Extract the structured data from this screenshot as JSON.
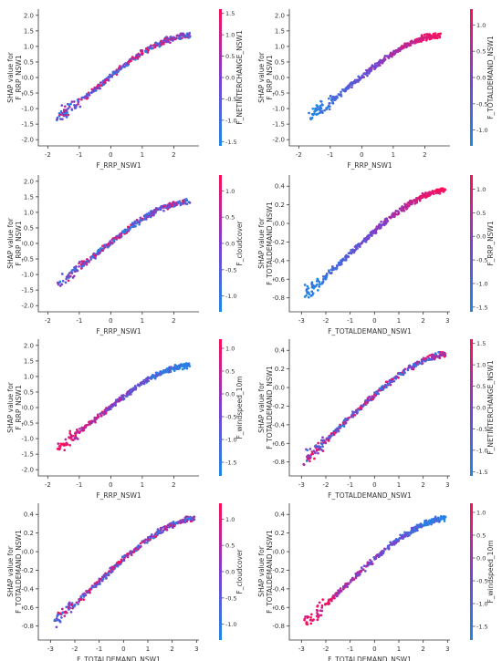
{
  "colorbar_stops": [
    "#1e88e5",
    "#7c3fcf",
    "#ff0d57"
  ],
  "chart_data": [
    {
      "type": "scatter",
      "xlabel": "F_RRP_NSW1",
      "ylabel": [
        "SHAP value for",
        "F_RRP_NSW1"
      ],
      "color_label": "F_NETINTERCHANGE_NSW1",
      "xlim": [
        -2.3,
        2.8
      ],
      "ylim": [
        -2.2,
        2.2
      ],
      "xticks": [
        "-2",
        "-1",
        "0",
        "1",
        "2"
      ],
      "xtick_values": [
        -2,
        -1,
        0,
        1,
        2
      ],
      "yticks": [
        "-2.0",
        "-1.5",
        "-1.0",
        "-0.5",
        "0.0",
        "0.5",
        "1.0",
        "1.5",
        "2.0"
      ],
      "ytick_values": [
        -2,
        -1.5,
        -1,
        -0.5,
        0,
        0.5,
        1,
        1.5,
        2
      ],
      "cticks": [
        "-1.5",
        "-1.0",
        "-0.5",
        "0.0",
        "0.5",
        "1.0",
        "1.5"
      ],
      "ctick_values": [
        -1.5,
        -1,
        -0.5,
        0,
        0.5,
        1,
        1.5
      ],
      "clim": [
        -1.6,
        1.6
      ],
      "trend": {
        "x0": -1.7,
        "x1": 2.5,
        "a": 0.03,
        "b": 0.82,
        "c": -0.03,
        "d": -0.035
      },
      "spread": 0.13,
      "color_mode": "random",
      "seed": 11
    },
    {
      "type": "scatter",
      "xlabel": "F_RRP_NSW1",
      "ylabel": [
        "SHAP value for",
        "F_RRP_NSW1"
      ],
      "color_label": "F_TOTALDEMAND_NSW1",
      "xlim": [
        -2.3,
        2.8
      ],
      "ylim": [
        -2.2,
        2.2
      ],
      "xticks": [
        "-2",
        "-1",
        "0",
        "1",
        "2"
      ],
      "xtick_values": [
        -2,
        -1,
        0,
        1,
        2
      ],
      "yticks": [
        "-2.0",
        "-1.5",
        "-1.0",
        "-0.5",
        "0.0",
        "0.5",
        "1.0",
        "1.5",
        "2.0"
      ],
      "ytick_values": [
        -2,
        -1.5,
        -1,
        -0.5,
        0,
        0.5,
        1,
        1.5,
        2
      ],
      "cticks": [
        "-1.0",
        "-0.5",
        "0.0",
        "0.5",
        "1.0"
      ],
      "ctick_values": [
        -1,
        -0.5,
        0,
        0.5,
        1
      ],
      "clim": [
        -1.3,
        1.3
      ],
      "trend": {
        "x0": -1.7,
        "x1": 2.5,
        "a": 0.03,
        "b": 0.82,
        "c": -0.03,
        "d": -0.035
      },
      "spread": 0.13,
      "color_mode": "x",
      "seed": 23
    },
    {
      "type": "scatter",
      "xlabel": "F_RRP_NSW1",
      "ylabel": [
        "SHAP value for",
        "F_RRP_NSW1"
      ],
      "color_label": "F_cloudcover",
      "xlim": [
        -2.3,
        2.8
      ],
      "ylim": [
        -2.2,
        2.2
      ],
      "xticks": [
        "-2",
        "-1",
        "0",
        "1",
        "2"
      ],
      "xtick_values": [
        -2,
        -1,
        0,
        1,
        2
      ],
      "yticks": [
        "-2.0",
        "-1.5",
        "-1.0",
        "-0.5",
        "0.0",
        "0.5",
        "1.0",
        "1.5",
        "2.0"
      ],
      "ytick_values": [
        -2,
        -1.5,
        -1,
        -0.5,
        0,
        0.5,
        1,
        1.5,
        2
      ],
      "cticks": [
        "-1.0",
        "-0.5",
        "0.0",
        "0.5",
        "1.0"
      ],
      "ctick_values": [
        -1,
        -0.5,
        0,
        0.5,
        1
      ],
      "clim": [
        -1.3,
        1.3
      ],
      "trend": {
        "x0": -1.7,
        "x1": 2.5,
        "a": 0.03,
        "b": 0.82,
        "c": -0.03,
        "d": -0.035
      },
      "spread": 0.13,
      "color_mode": "random",
      "seed": 37
    },
    {
      "type": "scatter",
      "xlabel": "F_TOTALDEMAND_NSW1",
      "ylabel": [
        "SHAP value for",
        "F_TOTALDEMAND_NSW1"
      ],
      "color_label": "F_RRP_NSW1",
      "xlim": [
        -3.5,
        3.1
      ],
      "ylim": [
        -0.95,
        0.52
      ],
      "xticks": [
        "-3",
        "-2",
        "-1",
        "0",
        "1",
        "2",
        "3"
      ],
      "xtick_values": [
        -3,
        -2,
        -1,
        0,
        1,
        2,
        3
      ],
      "yticks": [
        "-0.8",
        "-0.6",
        "-0.4",
        "-0.2",
        "0.0",
        "0.2",
        "0.4"
      ],
      "ytick_values": [
        -0.8,
        -0.6,
        -0.4,
        -0.2,
        0,
        0.2,
        0.4
      ],
      "cticks": [
        "-1.5",
        "-1.0",
        "-0.5",
        "0.0",
        "0.5",
        "1.0"
      ],
      "ctick_values": [
        -1.5,
        -1,
        -0.5,
        0,
        0.5,
        1
      ],
      "clim": [
        -1.6,
        1.3
      ],
      "trend": {
        "x0": -2.9,
        "x1": 2.9,
        "a": -0.08,
        "b": 0.23,
        "c": -0.015,
        "d": -0.004
      },
      "spread": 0.045,
      "color_mode": "x",
      "seed": 41
    },
    {
      "type": "scatter",
      "xlabel": "F_RRP_NSW1",
      "ylabel": [
        "SHAP value for",
        "F_RRP_NSW1"
      ],
      "color_label": "F_windspeed_10m",
      "xlim": [
        -2.3,
        2.8
      ],
      "ylim": [
        -2.2,
        2.2
      ],
      "xticks": [
        "-2",
        "-1",
        "0",
        "1",
        "2"
      ],
      "xtick_values": [
        -2,
        -1,
        0,
        1,
        2
      ],
      "yticks": [
        "-2.0",
        "-1.5",
        "-1.0",
        "-0.5",
        "0.0",
        "0.5",
        "1.0",
        "1.5",
        "2.0"
      ],
      "ytick_values": [
        -2,
        -1.5,
        -1,
        -0.5,
        0,
        0.5,
        1,
        1.5,
        2
      ],
      "cticks": [
        "-1.5",
        "-1.0",
        "-0.5",
        "0.0",
        "0.5",
        "1.0"
      ],
      "ctick_values": [
        -1.5,
        -1,
        -0.5,
        0,
        0.5,
        1
      ],
      "clim": [
        -1.8,
        1.2
      ],
      "trend": {
        "x0": -1.7,
        "x1": 2.5,
        "a": 0.03,
        "b": 0.82,
        "c": -0.03,
        "d": -0.035
      },
      "spread": 0.13,
      "color_mode": "neg",
      "seed": 53
    },
    {
      "type": "scatter",
      "xlabel": "F_TOTALDEMAND_NSW1",
      "ylabel": [
        "SHAP value for",
        "F_TOTALDEMAND_NSW1"
      ],
      "color_label": "F_NETINTERCHANGE_NSW1",
      "xlim": [
        -3.5,
        3.1
      ],
      "ylim": [
        -0.95,
        0.52
      ],
      "xticks": [
        "-3",
        "-2",
        "-1",
        "0",
        "1",
        "2",
        "3"
      ],
      "xtick_values": [
        -3,
        -2,
        -1,
        0,
        1,
        2,
        3
      ],
      "yticks": [
        "-0.8",
        "-0.6",
        "-0.4",
        "-0.2",
        "0.0",
        "0.2",
        "0.4"
      ],
      "ytick_values": [
        -0.8,
        -0.6,
        -0.4,
        -0.2,
        0,
        0.2,
        0.4
      ],
      "cticks": [
        "-1.5",
        "-1.0",
        "-0.5",
        "0.0",
        "0.5",
        "1.0",
        "1.5"
      ],
      "ctick_values": [
        -1.5,
        -1,
        -0.5,
        0,
        0.5,
        1,
        1.5
      ],
      "clim": [
        -1.6,
        1.6
      ],
      "trend": {
        "x0": -2.9,
        "x1": 2.9,
        "a": -0.08,
        "b": 0.23,
        "c": -0.015,
        "d": -0.004
      },
      "spread": 0.045,
      "color_mode": "random",
      "seed": 67
    },
    {
      "type": "scatter",
      "xlabel": "F_TOTALDEMAND_NSW1",
      "ylabel": [
        "SHAP value for",
        "F_TOTALDEMAND_NSW1"
      ],
      "color_label": "F_cloudcover",
      "xlim": [
        -3.5,
        3.1
      ],
      "ylim": [
        -0.95,
        0.52
      ],
      "xticks": [
        "-3",
        "-2",
        "-1",
        "0",
        "1",
        "2",
        "3"
      ],
      "xtick_values": [
        -3,
        -2,
        -1,
        0,
        1,
        2,
        3
      ],
      "yticks": [
        "-0.8",
        "-0.6",
        "-0.4",
        "-0.2",
        "0.0",
        "0.2",
        "0.4"
      ],
      "ytick_values": [
        -0.8,
        -0.6,
        -0.4,
        -0.2,
        0,
        0.2,
        0.4
      ],
      "cticks": [
        "-1.0",
        "-0.5",
        "0.0",
        "0.5",
        "1.0"
      ],
      "ctick_values": [
        -1,
        -0.5,
        0,
        0.5,
        1
      ],
      "clim": [
        -1.3,
        1.3
      ],
      "trend": {
        "x0": -2.9,
        "x1": 2.9,
        "a": -0.08,
        "b": 0.23,
        "c": -0.015,
        "d": -0.004
      },
      "spread": 0.045,
      "color_mode": "random",
      "seed": 79
    },
    {
      "type": "scatter",
      "xlabel": "F_TOTALDEMAND_NSW1",
      "ylabel": [
        "SHAP value for",
        "F_TOTALDEMAND_NSW1"
      ],
      "color_label": "F_windspeed_10m",
      "xlim": [
        -3.5,
        3.1
      ],
      "ylim": [
        -0.95,
        0.52
      ],
      "xticks": [
        "-3",
        "-2",
        "-1",
        "0",
        "1",
        "2",
        "3"
      ],
      "xtick_values": [
        -3,
        -2,
        -1,
        0,
        1,
        2,
        3
      ],
      "yticks": [
        "-0.8",
        "-0.6",
        "-0.4",
        "-0.2",
        "0.0",
        "0.2",
        "0.4"
      ],
      "ytick_values": [
        -0.8,
        -0.6,
        -0.4,
        -0.2,
        0,
        0.2,
        0.4
      ],
      "cticks": [
        "-1.5",
        "-1.0",
        "-0.5",
        "0.0",
        "0.5",
        "1.0"
      ],
      "ctick_values": [
        -1.5,
        -1,
        -0.5,
        0,
        0.5,
        1
      ],
      "clim": [
        -1.8,
        1.2
      ],
      "trend": {
        "x0": -2.9,
        "x1": 2.9,
        "a": -0.08,
        "b": 0.23,
        "c": -0.015,
        "d": -0.004
      },
      "spread": 0.045,
      "color_mode": "neg",
      "seed": 97
    }
  ]
}
